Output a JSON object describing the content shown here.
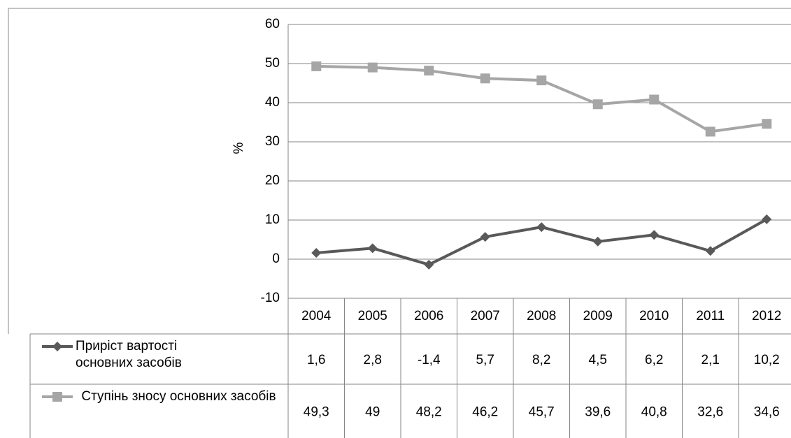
{
  "chart_data": {
    "type": "line",
    "y_label": "%",
    "categories": [
      "2004",
      "2005",
      "2006",
      "2007",
      "2008",
      "2009",
      "2010",
      "2011",
      "2012"
    ],
    "series": [
      {
        "name": "Приріст вартості основних засобів",
        "color": "#595959",
        "marker": "diamond",
        "values": [
          1.6,
          2.8,
          -1.4,
          5.7,
          8.2,
          4.5,
          6.2,
          2.1,
          10.2
        ],
        "value_labels": [
          "1,6",
          "2,8",
          "-1,4",
          "5,7",
          "8,2",
          "4,5",
          "6,2",
          "2,1",
          "10,2"
        ]
      },
      {
        "name": "Ступінь зносу основних засобів",
        "color": "#a6a6a6",
        "marker": "square",
        "values": [
          49.3,
          49,
          48.2,
          46.2,
          45.7,
          39.6,
          40.8,
          32.6,
          34.6
        ],
        "value_labels": [
          "49,3",
          "49",
          "48,2",
          "46,2",
          "45,7",
          "39,6",
          "40,8",
          "32,6",
          "34,6"
        ]
      }
    ],
    "ylim": [
      -10,
      60
    ],
    "yticks": [
      -10,
      0,
      10,
      20,
      30,
      40,
      50,
      60
    ],
    "grid": true
  }
}
